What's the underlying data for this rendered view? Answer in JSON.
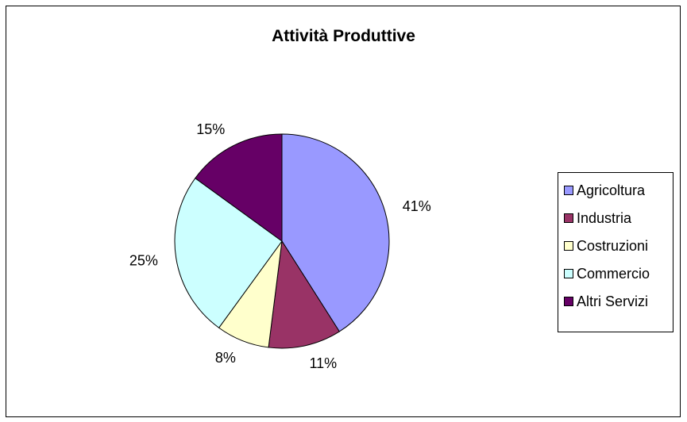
{
  "chart_data": {
    "type": "pie",
    "title": "Attività Produttive",
    "categories": [
      "Agricoltura",
      "Industria",
      "Costruzioni",
      "Commercio",
      "Altri Servizi"
    ],
    "values": [
      41,
      11,
      8,
      25,
      15
    ],
    "value_labels": [
      "41%",
      "11%",
      "8%",
      "25%",
      "15%"
    ],
    "colors": [
      "#9999FF",
      "#993366",
      "#FFFFCC",
      "#CCFFFF",
      "#660066"
    ],
    "legend_position": "right"
  }
}
